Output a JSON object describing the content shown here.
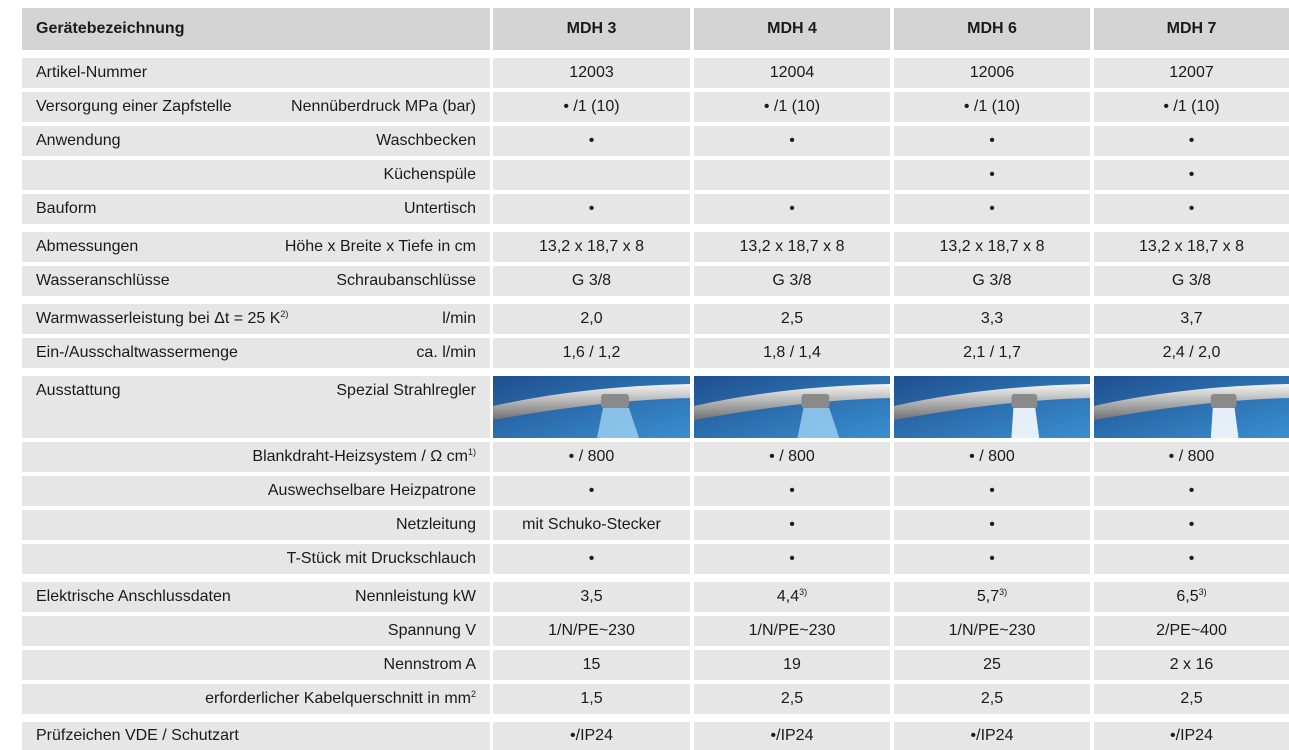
{
  "header": {
    "label": "Gerätebezeichnung",
    "models": [
      "MDH 3",
      "MDH 4",
      "MDH 6",
      "MDH 7"
    ]
  },
  "groups": [
    {
      "rows": [
        {
          "left": "Artikel-Nummer",
          "cells": [
            "12003",
            "12004",
            "12006",
            "12007"
          ]
        },
        {
          "left": "Versorgung einer Zapfstelle",
          "right": "Nennüberdruck MPa (bar)",
          "cells": [
            "• /1 (10)",
            "• /1 (10)",
            "• /1 (10)",
            "• /1 (10)"
          ]
        },
        {
          "left": "Anwendung",
          "right": "Waschbecken",
          "cells": [
            "•",
            "•",
            "•",
            "•"
          ]
        },
        {
          "right": "Küchenspüle",
          "cells": [
            null,
            null,
            "•",
            "•"
          ]
        },
        {
          "left": "Bauform",
          "right": "Untertisch",
          "cells": [
            "•",
            "•",
            "•",
            "•"
          ]
        }
      ]
    },
    {
      "rows": [
        {
          "left": "Abmessungen",
          "right": "Höhe x Breite x Tiefe in cm",
          "cells": [
            "13,2 x 18,7 x 8",
            "13,2 x 18,7 x 8",
            "13,2 x 18,7 x 8",
            "13,2 x 18,7 x 8"
          ]
        },
        {
          "left": "Wasseranschlüsse",
          "right": "Schraubanschlüsse",
          "cells": [
            "G 3/8",
            "G 3/8",
            "G 3/8",
            "G 3/8"
          ]
        }
      ]
    },
    {
      "rows": [
        {
          "left": "Warmwasserleistung bei Δt = 25 K",
          "left_sup": "2)",
          "right": "l/min",
          "cells": [
            "2,0",
            "2,5",
            "3,3",
            "3,7"
          ]
        },
        {
          "left": "Ein-/Ausschaltwassermenge",
          "right": "ca. l/min",
          "cells": [
            "1,6 / 1,2",
            "1,8 / 1,4",
            "2,1 / 1,7",
            "2,4 / 2,0"
          ]
        }
      ]
    },
    {
      "rows": [
        {
          "left": "Ausstattung",
          "right": "Spezial Strahlregler",
          "photo": true
        },
        {
          "right": "Blankdraht-Heizsystem / Ω cm",
          "right_sup": "1)",
          "cells": [
            "• / 800",
            "• / 800",
            "• / 800",
            "• / 800"
          ]
        },
        {
          "right": "Auswechselbare Heizpatrone",
          "cells": [
            "•",
            "•",
            "•",
            "•"
          ]
        },
        {
          "right": "Netzleitung",
          "cells": [
            "mit Schuko-Stecker",
            "•",
            "•",
            "•"
          ]
        },
        {
          "right": "T-Stück mit Druckschlauch",
          "cells": [
            "•",
            "•",
            "•",
            "•"
          ]
        }
      ]
    },
    {
      "rows": [
        {
          "left": "Elektrische Anschlussdaten",
          "right": "Nennleistung kW",
          "cells": [
            "3,5",
            {
              "text": "4,4",
              "sup": "3)"
            },
            {
              "text": "5,7",
              "sup": "3)"
            },
            {
              "text": "6,5",
              "sup": "3)"
            }
          ]
        },
        {
          "right": "Spannung V",
          "cells": [
            "1/N/PE~230",
            "1/N/PE~230",
            "1/N/PE~230",
            "2/PE~400"
          ]
        },
        {
          "right": "Nennstrom A",
          "cells": [
            "15",
            "19",
            "25",
            "2 x 16"
          ]
        },
        {
          "right": "erforderlicher Kabelquerschnitt in mm",
          "right_sup": "2",
          "cells": [
            "1,5",
            "2,5",
            "2,5",
            "2,5"
          ]
        }
      ]
    },
    {
      "rows": [
        {
          "left": "Prüfzeichen VDE / Schutzart",
          "cells": [
            "•/IP24",
            "•/IP24",
            "•/IP24",
            "•/IP24"
          ]
        }
      ]
    }
  ]
}
